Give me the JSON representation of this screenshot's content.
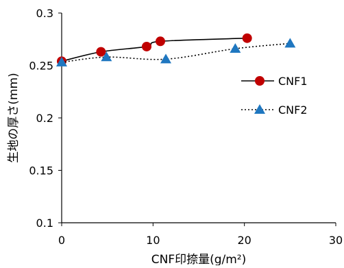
{
  "chart_data": {
    "type": "scatter",
    "title": "",
    "xlabel": "CNF印捺量(g/m²)",
    "ylabel": "生地の厚さ(mm)",
    "xlim": [
      0,
      30
    ],
    "ylim": [
      0.1,
      0.3
    ],
    "x_ticks": [
      0,
      10,
      20,
      30
    ],
    "x_tick_labels": [
      "0",
      "10",
      "20",
      "30"
    ],
    "y_ticks": [
      0.1,
      0.15,
      0.2,
      0.25,
      0.3
    ],
    "y_tick_labels": [
      "0.1",
      "0.15",
      "0.2",
      "0.25",
      "0.3"
    ],
    "grid": false,
    "legend_position": "right",
    "series": [
      {
        "name": "CNF1",
        "marker": "circle",
        "line": "solid",
        "color": "#c00000",
        "line_color": "#000000",
        "points": [
          {
            "x": 0.0,
            "y": 0.254
          },
          {
            "x": 4.3,
            "y": 0.263
          },
          {
            "x": 9.3,
            "y": 0.268
          },
          {
            "x": 10.8,
            "y": 0.273
          },
          {
            "x": 20.3,
            "y": 0.276
          }
        ]
      },
      {
        "name": "CNF2",
        "marker": "triangle",
        "line": "dotted",
        "color": "#1f77c0",
        "line_color": "#000000",
        "points": [
          {
            "x": 0.0,
            "y": 0.253
          },
          {
            "x": 4.9,
            "y": 0.258
          },
          {
            "x": 11.4,
            "y": 0.256
          },
          {
            "x": 19.0,
            "y": 0.266
          },
          {
            "x": 25.0,
            "y": 0.271
          }
        ]
      }
    ]
  }
}
